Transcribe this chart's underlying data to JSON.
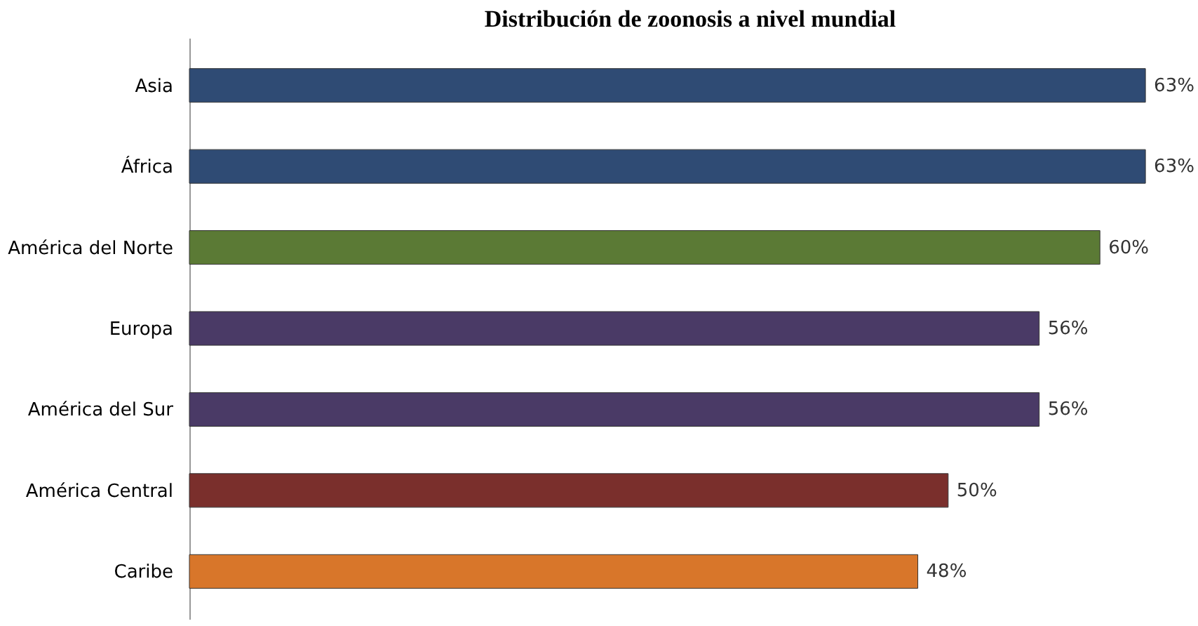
{
  "chart_data": {
    "type": "bar",
    "orientation": "horizontal",
    "title": "Distribución de zoonosis a nivel mundial",
    "categories": [
      "Asia",
      "África",
      "América del Norte",
      "Europa",
      "América del Sur",
      "América Central",
      "Caribe"
    ],
    "values": [
      63,
      63,
      60,
      56,
      56,
      50,
      48
    ],
    "colors": [
      "#2f4b74",
      "#2f4b74",
      "#5b7a35",
      "#4a3a66",
      "#4a3a66",
      "#7a2f2c",
      "#d8762a"
    ],
    "value_labels": [
      "63%",
      "63%",
      "60%",
      "56%",
      "56%",
      "50%",
      "48%"
    ],
    "xlim": [
      0,
      66
    ]
  }
}
